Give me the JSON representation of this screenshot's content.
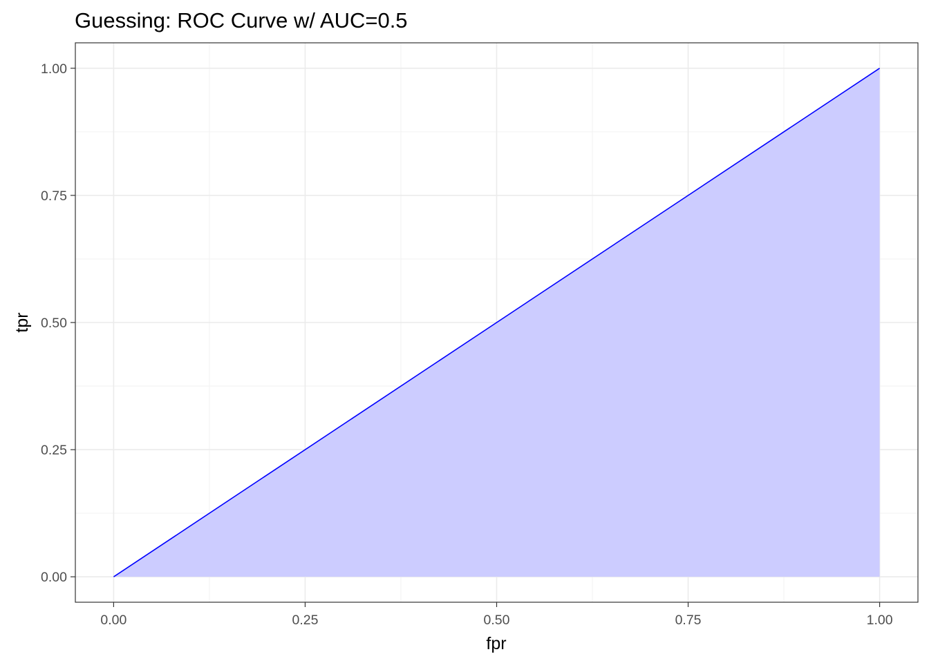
{
  "chart_data": {
    "type": "area",
    "title": "Guessing: ROC Curve w/ AUC=0.5",
    "xlabel": "fpr",
    "ylabel": "tpr",
    "xlim": [
      -0.05,
      1.05
    ],
    "ylim": [
      -0.05,
      1.05
    ],
    "x_ticks": [
      0,
      0.25,
      0.5,
      0.75,
      1
    ],
    "x_tick_labels": [
      "0.00",
      "0.25",
      "0.50",
      "0.75",
      "1.00"
    ],
    "y_ticks": [
      0,
      0.25,
      0.5,
      0.75,
      1
    ],
    "y_tick_labels": [
      "0.00",
      "0.25",
      "0.50",
      "0.75",
      "1.00"
    ],
    "grid": true,
    "series": [
      {
        "x": [
          0,
          1
        ],
        "y": [
          0,
          1
        ],
        "line_color": "#0000ff",
        "fill_color": "#ccccff"
      }
    ]
  }
}
